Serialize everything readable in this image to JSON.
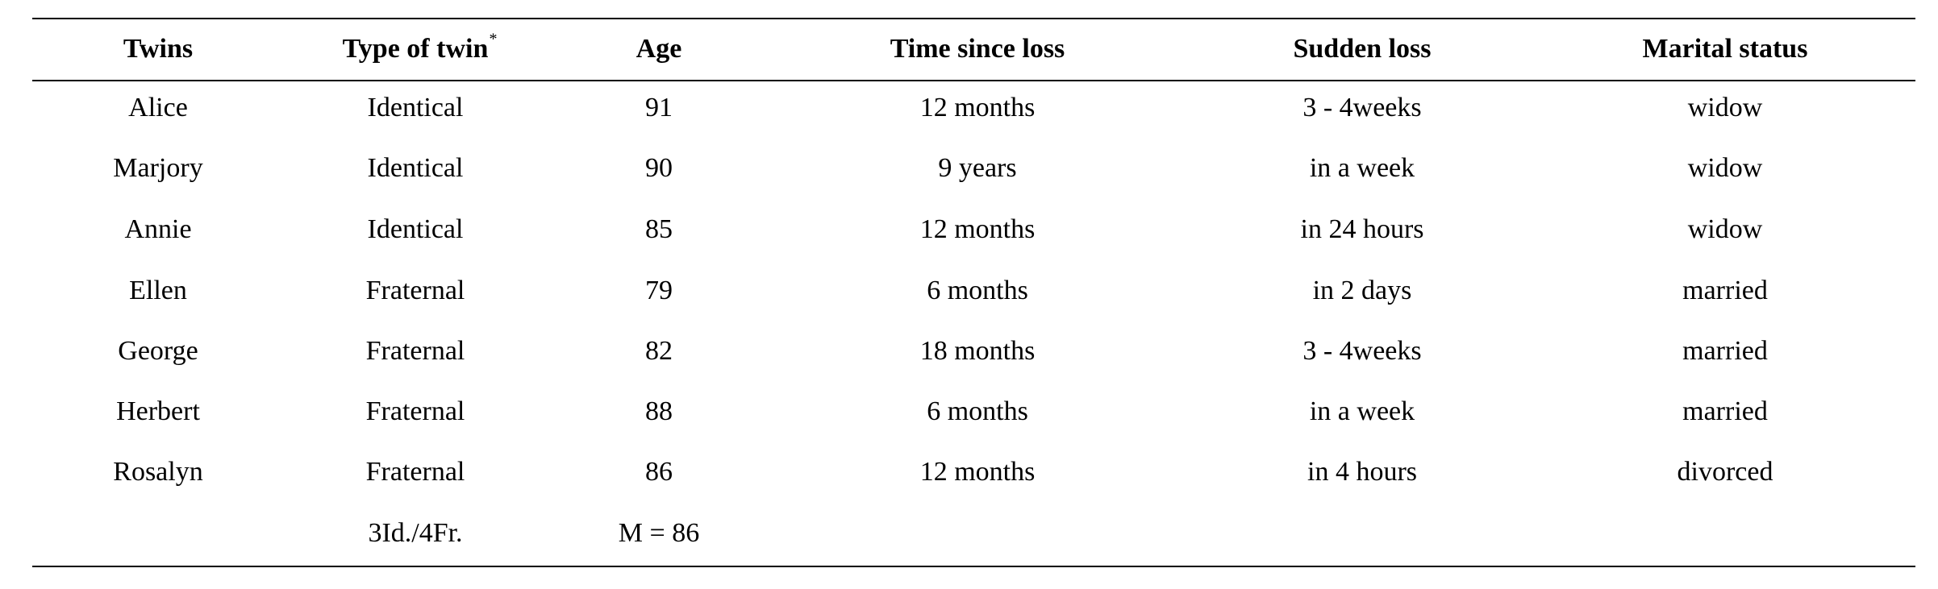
{
  "table": {
    "header": [
      "Twins",
      "Type of twin",
      "Age",
      "Time since loss",
      "Sudden loss",
      "Marital status"
    ],
    "header_note_mark": "*",
    "rows": [
      [
        "Alice",
        "Identical",
        "91",
        "12 months",
        "3 - 4weeks",
        "widow"
      ],
      [
        "Marjory",
        "Identical",
        "90",
        "9 years",
        "in a week",
        "widow"
      ],
      [
        "Annie",
        "Identical",
        "85",
        "12 months",
        "in 24 hours",
        "widow"
      ],
      [
        "Ellen",
        "Fraternal",
        "79",
        "6 months",
        "in 2 days",
        "married"
      ],
      [
        "George",
        "Fraternal",
        "82",
        "18 months",
        "3 - 4weeks",
        "married"
      ],
      [
        "Herbert",
        "Fraternal",
        "88",
        "6 months",
        "in a week",
        "married"
      ],
      [
        "Rosalyn",
        "Fraternal",
        "86",
        "12 months",
        "in 4 hours",
        "divorced"
      ]
    ],
    "summary": {
      "type": "3Id./4Fr.",
      "age": "M = 86"
    }
  }
}
